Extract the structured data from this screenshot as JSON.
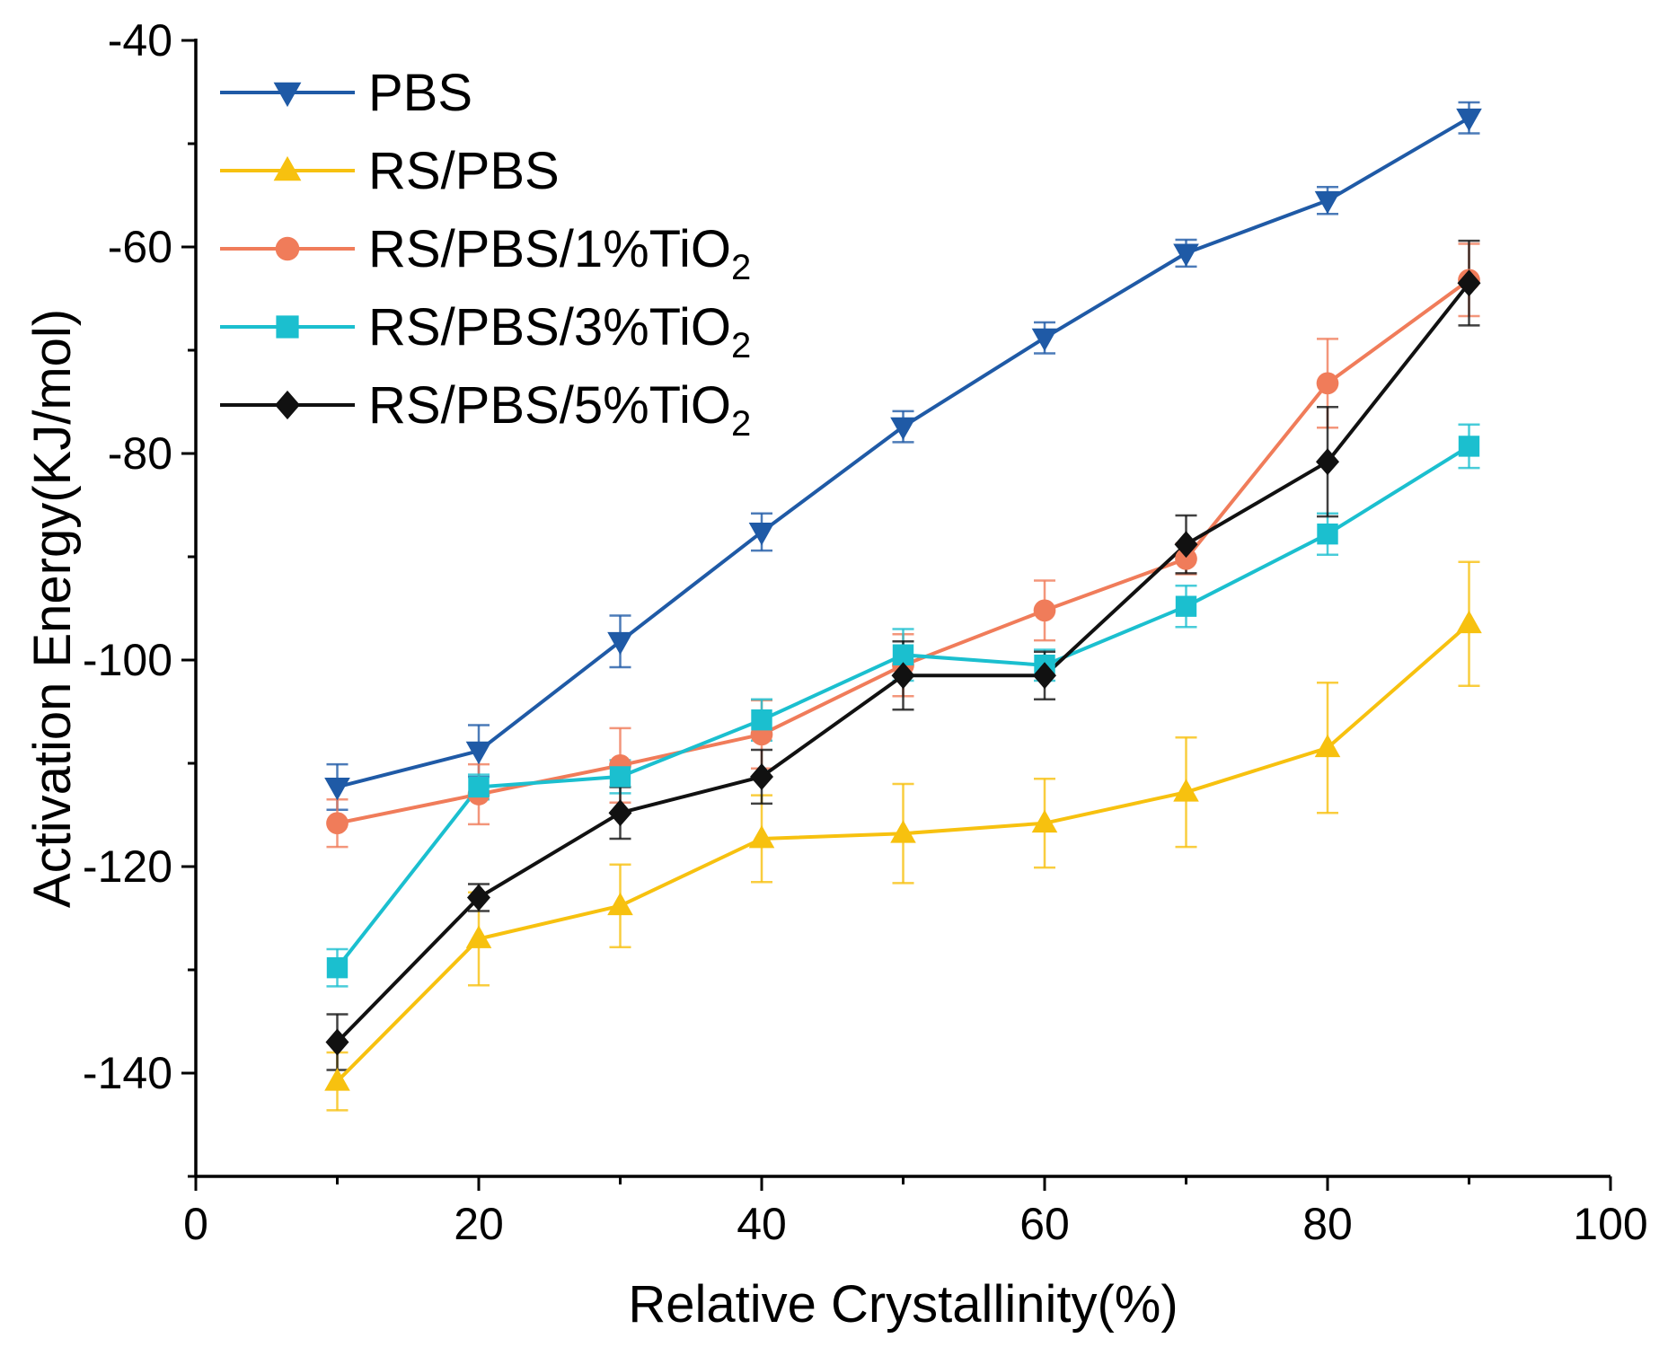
{
  "chart_data": {
    "type": "line",
    "title": "",
    "xlabel": "Relative Crystallinity(%)",
    "ylabel": "Activation Energy(KJ/mol)",
    "xlim": [
      0,
      100
    ],
    "ylim": [
      -150,
      -40
    ],
    "x_ticks": [
      "0",
      "20",
      "40",
      "60",
      "80",
      "100"
    ],
    "y_ticks": [
      "-40",
      "-60",
      "-80",
      "-100",
      "-120",
      "-140"
    ],
    "x_tick_values": [
      0,
      20,
      40,
      60,
      80,
      100
    ],
    "y_tick_values": [
      -40,
      -60,
      -80,
      -100,
      -120,
      -140
    ],
    "legend_position": "top-left",
    "x": [
      10,
      20,
      30,
      40,
      50,
      60,
      70,
      80,
      90
    ],
    "series": [
      {
        "name": "PBS",
        "label_main": "PBS",
        "label_sub": "",
        "color": "#1f5aa6",
        "marker": "triangle-down",
        "values": [
          -112.3,
          -108.8,
          -98.2,
          -87.6,
          -77.4,
          -68.8,
          -60.6,
          -55.5,
          -47.5
        ],
        "errors": [
          2.2,
          2.5,
          2.5,
          1.8,
          1.5,
          1.5,
          1.3,
          1.3,
          1.5
        ]
      },
      {
        "name": "RS/PBS",
        "label_main": "RS/PBS",
        "label_sub": "",
        "color": "#f7c10f",
        "marker": "triangle-up",
        "values": [
          -140.8,
          -127.0,
          -123.8,
          -117.3,
          -116.8,
          -115.8,
          -112.8,
          -108.5,
          -96.5
        ],
        "errors": [
          2.8,
          4.5,
          4.0,
          4.2,
          4.8,
          4.3,
          5.3,
          6.3,
          6.0
        ]
      },
      {
        "name": "RS/PBS/1%TiO2",
        "label_main": "RS/PBS/1%TiO",
        "label_sub": "2",
        "color": "#f07c5a",
        "marker": "circle",
        "values": [
          -115.8,
          -113.0,
          -110.2,
          -107.2,
          -100.5,
          -95.2,
          -90.2,
          -73.2,
          -63.2
        ],
        "errors": [
          2.3,
          2.9,
          3.6,
          3.3,
          3.0,
          2.9,
          1.5,
          4.3,
          3.5
        ]
      },
      {
        "name": "RS/PBS/3%TiO2",
        "label_main": "RS/PBS/3%TiO",
        "label_sub": "2",
        "color": "#1bbfcf",
        "marker": "square",
        "values": [
          -129.8,
          -112.3,
          -111.3,
          -105.8,
          -99.5,
          -100.5,
          -94.8,
          -87.8,
          -79.3
        ],
        "errors": [
          1.8,
          1.2,
          1.6,
          2.0,
          2.5,
          1.5,
          2.0,
          2.0,
          2.1
        ]
      },
      {
        "name": "RS/PBS/5%TiO2",
        "label_main": "RS/PBS/5%TiO",
        "label_sub": "2",
        "color": "#111111",
        "marker": "diamond",
        "values": [
          -137.0,
          -123.0,
          -114.8,
          -111.3,
          -101.5,
          -101.5,
          -88.8,
          -80.8,
          -63.5
        ],
        "errors": [
          2.7,
          1.3,
          2.5,
          2.6,
          3.3,
          2.3,
          2.8,
          5.3,
          4.1
        ]
      }
    ]
  }
}
